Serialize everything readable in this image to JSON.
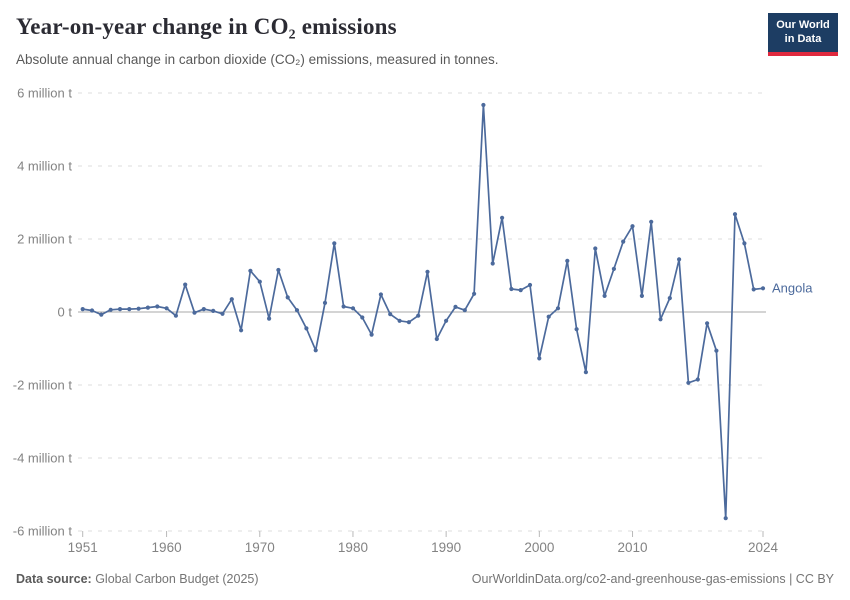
{
  "header": {
    "title": "Year-on-year change in CO₂ emissions",
    "subtitle": "Absolute annual change in carbon dioxide (CO₂) emissions, measured in tonnes.",
    "logo": {
      "line1": "Our World",
      "line2": "in Data",
      "bg_color": "#1d3d63",
      "accent_color": "#e0293e"
    }
  },
  "footer": {
    "source_label": "Data source:",
    "source_value": " Global Carbon Budget (2025)",
    "credit": "OurWorldinData.org/co2-and-greenhouse-gas-emissions | CC BY"
  },
  "chart_data": {
    "type": "line",
    "title": "Year-on-year change in CO₂ emissions",
    "entity_label": "Angola",
    "unit": "million tonnes CO₂ per year (absolute annual change)",
    "line_color": "#4C6A9C",
    "grid_color": "#dcdcdc",
    "zero_line_color": "#a8a8a8",
    "axis_text_color": "#838383",
    "grid_style": "horizontal dashed, solid zero line",
    "legend_position": "end-of-line label",
    "xlim": [
      1951,
      2024
    ],
    "ylim": [
      -6,
      6
    ],
    "x_ticks": [
      1951,
      1960,
      1970,
      1980,
      1990,
      2000,
      2010,
      2024
    ],
    "y_ticks": [
      {
        "value": 6,
        "label": "6 million t"
      },
      {
        "value": 4,
        "label": "4 million t"
      },
      {
        "value": 2,
        "label": "2 million t"
      },
      {
        "value": 0,
        "label": "0 t"
      },
      {
        "value": -2,
        "label": "-2 million t"
      },
      {
        "value": -4,
        "label": "-4 million t"
      },
      {
        "value": -6,
        "label": "-6 million t"
      }
    ],
    "years": [
      1951,
      1952,
      1953,
      1954,
      1955,
      1956,
      1957,
      1958,
      1959,
      1960,
      1961,
      1962,
      1963,
      1964,
      1965,
      1966,
      1967,
      1968,
      1969,
      1970,
      1971,
      1972,
      1973,
      1974,
      1975,
      1976,
      1977,
      1978,
      1979,
      1980,
      1981,
      1982,
      1983,
      1984,
      1985,
      1986,
      1987,
      1988,
      1989,
      1990,
      1991,
      1992,
      1993,
      1994,
      1995,
      1996,
      1997,
      1998,
      1999,
      2000,
      2001,
      2002,
      2003,
      2004,
      2005,
      2006,
      2007,
      2008,
      2009,
      2010,
      2011,
      2012,
      2013,
      2014,
      2015,
      2016,
      2017,
      2018,
      2019,
      2020,
      2021,
      2022,
      2023,
      2024
    ],
    "values_million_t": [
      0.08,
      0.04,
      -0.07,
      0.06,
      0.08,
      0.08,
      0.09,
      0.12,
      0.15,
      0.1,
      -0.1,
      0.75,
      -0.02,
      0.08,
      0.03,
      -0.05,
      0.35,
      -0.5,
      1.13,
      0.83,
      -0.18,
      1.15,
      0.4,
      0.05,
      -0.45,
      -1.05,
      0.25,
      1.88,
      0.15,
      0.1,
      -0.15,
      -0.62,
      0.48,
      -0.06,
      -0.24,
      -0.28,
      -0.1,
      1.1,
      -0.74,
      -0.24,
      0.14,
      0.05,
      0.5,
      5.67,
      1.33,
      2.58,
      0.63,
      0.6,
      0.74,
      -1.27,
      -0.13,
      0.1,
      1.4,
      -0.47,
      -1.65,
      1.74,
      0.44,
      1.18,
      1.93,
      2.35,
      0.44,
      2.47,
      -0.2,
      0.38,
      1.44,
      -1.94,
      -1.85,
      -0.31,
      -1.06,
      -5.65,
      2.68,
      1.88,
      0.62,
      0.65
    ]
  }
}
